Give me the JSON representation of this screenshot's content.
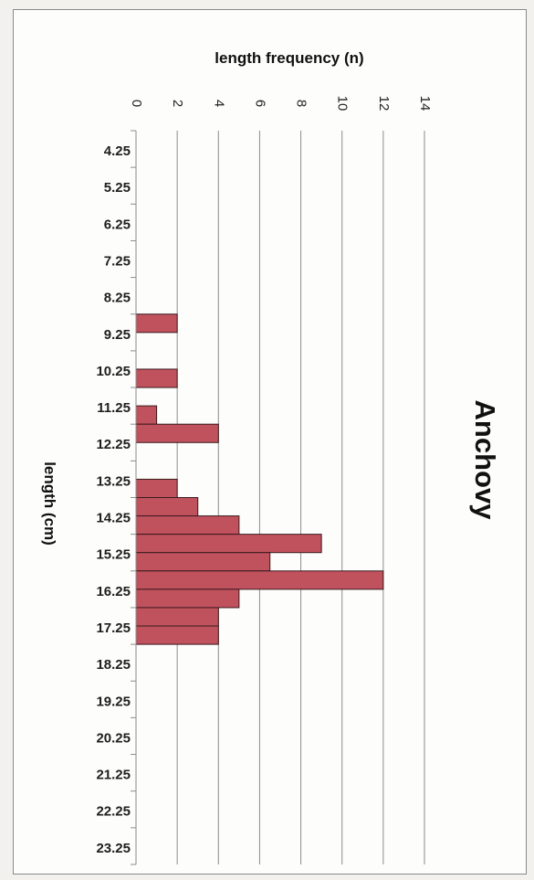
{
  "chart_data": {
    "type": "bar",
    "orientation": "horizontal",
    "title": "Anchovy",
    "xlabel": "length frequency (n)",
    "ylabel": "length (cm)",
    "xlim": [
      0,
      14
    ],
    "x_ticks": [
      "0",
      "2",
      "4",
      "6",
      "8",
      "10",
      "12",
      "14"
    ],
    "grid": true,
    "bar_color": "#c0525e",
    "bins": [
      4.25,
      4.75,
      5.25,
      5.75,
      6.25,
      6.75,
      7.25,
      7.75,
      8.25,
      8.75,
      9.25,
      9.75,
      10.25,
      10.75,
      11.25,
      11.75,
      12.25,
      12.75,
      13.25,
      13.75,
      14.25,
      14.75,
      15.25,
      15.75,
      16.25,
      16.75,
      17.25,
      17.75,
      18.25,
      18.75,
      19.25,
      19.75,
      20.25,
      20.75,
      21.25,
      21.75,
      22.25,
      22.75,
      23.25,
      23.75
    ],
    "values": [
      0,
      0,
      0,
      0,
      0,
      0,
      0,
      0,
      0,
      0,
      2,
      0,
      0,
      2,
      0,
      1,
      4,
      0,
      0,
      2,
      3,
      5,
      9,
      6.5,
      12,
      5,
      4,
      4,
      0,
      0,
      0,
      0,
      0,
      0,
      0,
      0,
      0,
      0,
      0,
      0
    ],
    "y_tick_labels": [
      "4.25",
      "5.25",
      "6.25",
      "7.25",
      "8.25",
      "9.25",
      "10.25",
      "11.25",
      "12.25",
      "13.25",
      "14.25",
      "15.25",
      "16.25",
      "17.25",
      "18.25",
      "19.25",
      "20.25",
      "21.25",
      "22.25",
      "23.25"
    ]
  }
}
